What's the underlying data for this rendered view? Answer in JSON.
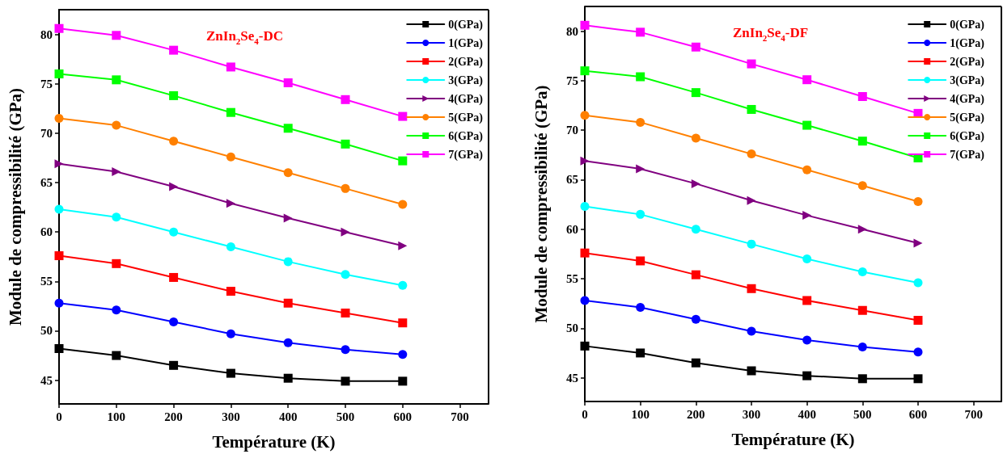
{
  "chart_data": [
    {
      "type": "line",
      "title": "ZnIn$_{2}$Se$_{4}$-DC",
      "xlabel": "Température (K)",
      "ylabel": "Module de compressibilité (GPa)",
      "x": [
        0,
        100,
        200,
        300,
        400,
        500,
        600
      ],
      "xlim": [
        0,
        750
      ],
      "xticks": [
        0,
        100,
        200,
        300,
        400,
        500,
        600,
        700
      ],
      "ylim": [
        42.6,
        82.5
      ],
      "yticks": [
        45,
        50,
        55,
        60,
        65,
        70,
        75,
        80
      ],
      "grid": false,
      "legend": "top right",
      "line_style": "solid",
      "series": [
        {
          "name": "0(GPa)",
          "color": "#000000",
          "marker": "square",
          "values": [
            48.2,
            47.5,
            46.5,
            45.7,
            45.2,
            44.9,
            44.9
          ]
        },
        {
          "name": "1(GPa)",
          "color": "#0000ff",
          "marker": "circle",
          "values": [
            52.8,
            52.1,
            50.9,
            49.7,
            48.8,
            48.1,
            47.6
          ]
        },
        {
          "name": "2(GPa)",
          "color": "#ff0000",
          "marker": "square",
          "values": [
            57.6,
            56.8,
            55.4,
            54.0,
            52.8,
            51.8,
            50.8
          ]
        },
        {
          "name": "3(GPa)",
          "color": "#00ffff",
          "marker": "circle",
          "values": [
            62.3,
            61.5,
            60.0,
            58.5,
            57.0,
            55.7,
            54.6
          ]
        },
        {
          "name": "4(GPa)",
          "color": "#800080",
          "marker": "triangle",
          "values": [
            66.9,
            66.1,
            64.6,
            62.9,
            61.4,
            60.0,
            58.6
          ]
        },
        {
          "name": "5(GPa)",
          "color": "#ff8000",
          "marker": "circle",
          "values": [
            71.5,
            70.8,
            69.2,
            67.6,
            66.0,
            64.4,
            62.8
          ]
        },
        {
          "name": "6(GPa)",
          "color": "#00ff00",
          "marker": "square",
          "values": [
            76.0,
            75.4,
            73.8,
            72.1,
            70.5,
            68.9,
            67.2
          ]
        },
        {
          "name": "7(GPa)",
          "color": "#ff00ff",
          "marker": "square",
          "values": [
            80.6,
            79.9,
            78.4,
            76.7,
            75.1,
            73.4,
            71.7
          ]
        }
      ]
    },
    {
      "type": "line",
      "title": "ZnIn$_{2}$Se$_{4}$-DF",
      "xlabel": "Température (K)",
      "ylabel": "Module de compressibilité (GPa)",
      "x": [
        0,
        100,
        200,
        300,
        400,
        500,
        600
      ],
      "xlim": [
        0,
        750
      ],
      "xticks": [
        0,
        100,
        200,
        300,
        400,
        500,
        600,
        700
      ],
      "ylim": [
        42.6,
        82.5
      ],
      "yticks": [
        45,
        50,
        55,
        60,
        65,
        70,
        75,
        80
      ],
      "grid": false,
      "legend": "top right",
      "line_style": "solid",
      "series": [
        {
          "name": "0(GPa)",
          "color": "#000000",
          "marker": "square",
          "values": [
            48.2,
            47.5,
            46.5,
            45.7,
            45.2,
            44.9,
            44.9
          ]
        },
        {
          "name": "1(GPa)",
          "color": "#0000ff",
          "marker": "circle",
          "values": [
            52.8,
            52.1,
            50.9,
            49.7,
            48.8,
            48.1,
            47.6
          ]
        },
        {
          "name": "2(GPa)",
          "color": "#ff0000",
          "marker": "square",
          "values": [
            57.6,
            56.8,
            55.4,
            54.0,
            52.8,
            51.8,
            50.8
          ]
        },
        {
          "name": "3(GPa)",
          "color": "#00ffff",
          "marker": "circle",
          "values": [
            62.3,
            61.5,
            60.0,
            58.5,
            57.0,
            55.7,
            54.6
          ]
        },
        {
          "name": "4(GPa)",
          "color": "#800080",
          "marker": "triangle",
          "values": [
            66.9,
            66.1,
            64.6,
            62.9,
            61.4,
            60.0,
            58.6
          ]
        },
        {
          "name": "5(GPa)",
          "color": "#ff8000",
          "marker": "circle",
          "values": [
            71.5,
            70.8,
            69.2,
            67.6,
            66.0,
            64.4,
            62.8
          ]
        },
        {
          "name": "6(GPa)",
          "color": "#00ff00",
          "marker": "square",
          "values": [
            76.0,
            75.4,
            73.8,
            72.1,
            70.5,
            68.9,
            67.2
          ]
        },
        {
          "name": "7(GPa)",
          "color": "#ff00ff",
          "marker": "square",
          "values": [
            80.6,
            79.9,
            78.4,
            76.7,
            75.1,
            73.4,
            71.7
          ]
        }
      ]
    }
  ]
}
